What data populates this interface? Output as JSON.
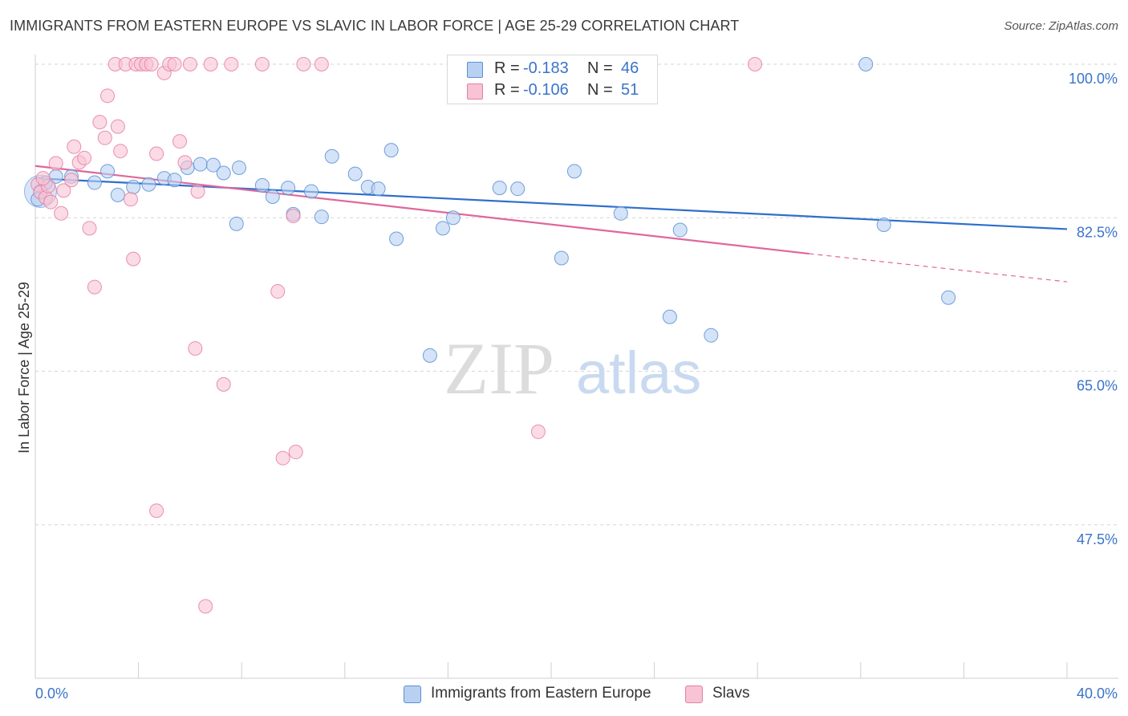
{
  "title": "IMMIGRANTS FROM EASTERN EUROPE VS SLAVIC IN LABOR FORCE | AGE 25-29 CORRELATION CHART",
  "source": "Source: ZipAtlas.com",
  "watermark": {
    "zip": "ZIP",
    "atlas": "atlas"
  },
  "legend": {
    "r_label": "R =",
    "n_label": "N =",
    "rows": [
      {
        "series": "Immigrants from Eastern Europe",
        "r": "-0.183",
        "n": "46"
      },
      {
        "series": "Slavs",
        "r": "-0.106",
        "n": "51"
      }
    ]
  },
  "colors": {
    "blue_fill": "#b8d0f2",
    "blue_stroke": "#5b8fd6",
    "blue_line": "#2f6fcb",
    "pink_fill": "#f8c3d4",
    "pink_stroke": "#e57fa1",
    "pink_line": "#e0679a",
    "tick_text": "#3a74c9",
    "grid": "#d6d6d6"
  },
  "chart_data": {
    "type": "scatter",
    "title": "IMMIGRANTS FROM EASTERN EUROPE VS SLAVIC IN LABOR FORCE | AGE 25-29 CORRELATION CHART",
    "xlabel": "",
    "ylabel": "In Labor Force | Age 25-29",
    "xlim": [
      0,
      40
    ],
    "ylim": [
      30,
      103
    ],
    "x_tick_labels": [
      {
        "value": 0,
        "label": "0.0%"
      },
      {
        "value": 40,
        "label": "40.0%"
      }
    ],
    "y_tick_labels": [
      {
        "value": 100,
        "label": "100.0%"
      },
      {
        "value": 82.5,
        "label": "82.5%"
      },
      {
        "value": 65,
        "label": "65.0%"
      },
      {
        "value": 47.5,
        "label": "47.5%"
      }
    ],
    "grid": true,
    "legend_position": "top-center",
    "series": [
      {
        "name": "Immigrants from Eastern Europe",
        "color": "#5b8fd6",
        "points": [
          [
            0.2,
            85.5
          ],
          [
            0.4,
            86.5
          ],
          [
            0.8,
            87.2
          ],
          [
            1.4,
            87.2
          ],
          [
            2.3,
            86.5
          ],
          [
            2.8,
            87.8
          ],
          [
            3.2,
            85.1
          ],
          [
            3.8,
            86.0
          ],
          [
            4.4,
            86.3
          ],
          [
            5.0,
            87.0
          ],
          [
            5.4,
            86.8
          ],
          [
            5.9,
            88.2
          ],
          [
            6.4,
            88.6
          ],
          [
            6.9,
            88.5
          ],
          [
            7.3,
            87.6
          ],
          [
            7.8,
            81.8
          ],
          [
            7.9,
            88.2
          ],
          [
            8.8,
            86.2
          ],
          [
            9.2,
            84.9
          ],
          [
            9.8,
            85.9
          ],
          [
            10.0,
            82.9
          ],
          [
            10.7,
            85.5
          ],
          [
            11.1,
            82.6
          ],
          [
            11.5,
            89.5
          ],
          [
            12.4,
            87.5
          ],
          [
            12.9,
            86.0
          ],
          [
            13.3,
            85.8
          ],
          [
            13.8,
            90.2
          ],
          [
            14.0,
            80.1
          ],
          [
            15.3,
            66.8
          ],
          [
            15.8,
            81.3
          ],
          [
            16.2,
            82.5
          ],
          [
            18.0,
            85.9
          ],
          [
            18.7,
            85.8
          ],
          [
            19.7,
            100.0
          ],
          [
            20.4,
            77.9
          ],
          [
            20.9,
            87.8
          ],
          [
            21.3,
            100.0
          ],
          [
            22.7,
            83.0
          ],
          [
            24.6,
            71.2
          ],
          [
            25.0,
            81.1
          ],
          [
            26.2,
            69.1
          ],
          [
            32.2,
            100.0
          ],
          [
            32.9,
            81.7
          ],
          [
            35.4,
            73.4
          ],
          [
            0.1,
            84.6
          ]
        ]
      },
      {
        "name": "Slavs",
        "color": "#e57fa1",
        "points": [
          [
            0.1,
            86.3
          ],
          [
            0.2,
            85.4
          ],
          [
            0.4,
            84.8
          ],
          [
            0.6,
            84.3
          ],
          [
            0.8,
            88.7
          ],
          [
            1.0,
            83.0
          ],
          [
            1.1,
            85.6
          ],
          [
            1.5,
            90.6
          ],
          [
            1.7,
            88.8
          ],
          [
            1.9,
            89.3
          ],
          [
            2.1,
            81.3
          ],
          [
            2.3,
            74.6
          ],
          [
            2.5,
            93.4
          ],
          [
            2.7,
            91.6
          ],
          [
            2.8,
            96.4
          ],
          [
            3.1,
            100.0
          ],
          [
            3.2,
            92.9
          ],
          [
            3.3,
            90.1
          ],
          [
            3.5,
            100.0
          ],
          [
            3.7,
            84.6
          ],
          [
            3.8,
            77.8
          ],
          [
            3.9,
            100.0
          ],
          [
            4.1,
            100.0
          ],
          [
            4.3,
            100.0
          ],
          [
            4.5,
            100.0
          ],
          [
            4.7,
            89.8
          ],
          [
            5.0,
            99.0
          ],
          [
            5.2,
            100.0
          ],
          [
            5.4,
            100.0
          ],
          [
            5.6,
            91.2
          ],
          [
            5.8,
            88.8
          ],
          [
            6.0,
            100.0
          ],
          [
            6.2,
            67.6
          ],
          [
            6.3,
            85.5
          ],
          [
            6.6,
            38.2
          ],
          [
            6.8,
            100.0
          ],
          [
            7.3,
            63.5
          ],
          [
            7.6,
            100.0
          ],
          [
            8.8,
            100.0
          ],
          [
            9.4,
            74.1
          ],
          [
            9.6,
            55.1
          ],
          [
            10.0,
            82.7
          ],
          [
            10.4,
            100.0
          ],
          [
            10.1,
            55.8
          ],
          [
            11.1,
            100.0
          ],
          [
            4.7,
            49.1
          ],
          [
            19.5,
            58.1
          ],
          [
            27.9,
            100.0
          ],
          [
            1.4,
            86.8
          ],
          [
            0.5,
            86.1
          ],
          [
            0.3,
            87.0
          ]
        ]
      }
    ],
    "trend_lines": [
      {
        "series": "Immigrants from Eastern Europe",
        "x": [
          0,
          40
        ],
        "y": [
          87.0,
          81.2
        ]
      },
      {
        "series": "Slavs",
        "x": [
          0,
          30
        ],
        "y": [
          88.4,
          78.4
        ],
        "dashed_extension": {
          "x": [
            30,
            40
          ],
          "y": [
            78.4,
            75.2
          ]
        }
      }
    ],
    "bubble_points": [
      {
        "series": "Immigrants from Eastern Europe",
        "x": 0.2,
        "y": 85.5
      }
    ]
  }
}
